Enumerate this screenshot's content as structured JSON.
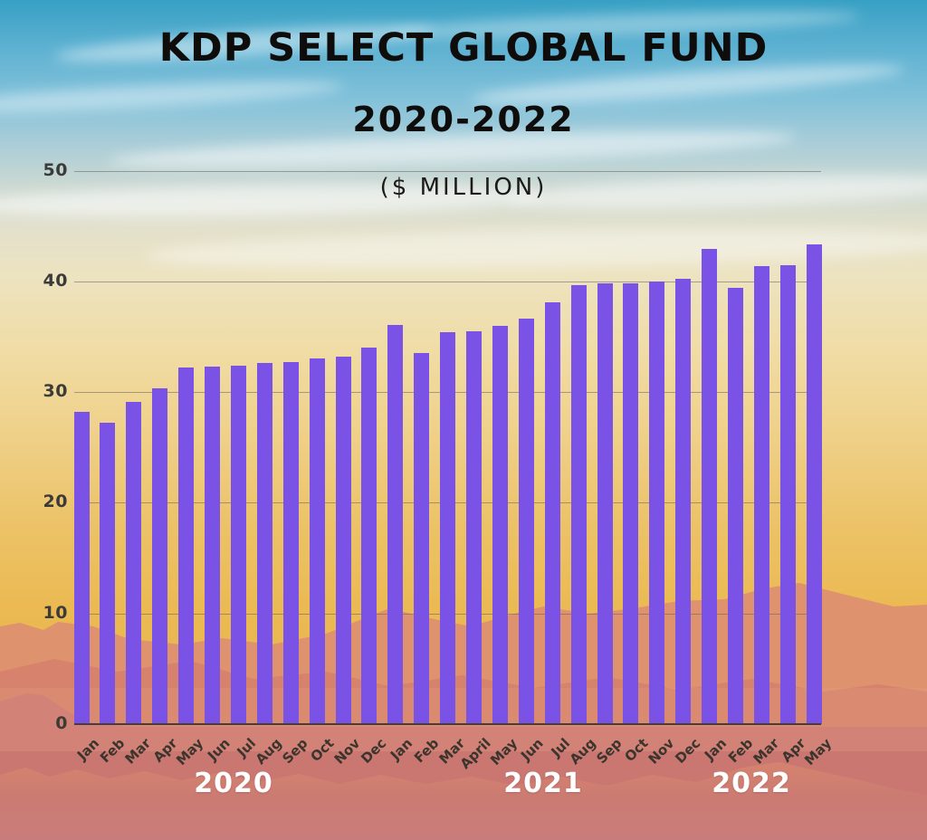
{
  "header": {
    "title": "KDP SELECT GLOBAL FUND",
    "subtitle": "2020-2022",
    "units_label": "($ MILLION)"
  },
  "chart_data": {
    "type": "bar",
    "title": "KDP SELECT GLOBAL FUND 2020-2022",
    "ylabel": "$ million",
    "ylim": [
      0,
      50
    ],
    "yticks": [
      0,
      10,
      20,
      30,
      40,
      50
    ],
    "grid": true,
    "legend": "none",
    "bar_color": "#7b52e6",
    "categories": [
      "Jan",
      "Feb",
      "Mar",
      "Apr",
      "May",
      "Jun",
      "Jul",
      "Aug",
      "Sep",
      "Oct",
      "Nov",
      "Dec",
      "Jan",
      "Feb",
      "Mar",
      "April",
      "May",
      "Jun",
      "Jul",
      "Aug",
      "Sep",
      "Oct",
      "Nov",
      "Dec",
      "Jan",
      "Feb",
      "Mar",
      "Apr",
      "May"
    ],
    "values": [
      28.2,
      27.2,
      29.1,
      30.3,
      32.2,
      32.3,
      32.4,
      32.6,
      32.7,
      33.0,
      33.2,
      34.0,
      36.1,
      33.5,
      35.4,
      35.5,
      36.0,
      36.6,
      38.1,
      39.7,
      39.8,
      39.8,
      40.0,
      40.2,
      42.9,
      39.4,
      41.4,
      41.5,
      43.3
    ],
    "year_groups": [
      {
        "label": "2020",
        "months": 12
      },
      {
        "label": "2021",
        "months": 12
      },
      {
        "label": "2022",
        "months": 5
      }
    ]
  },
  "colors": {
    "bar": "#7b52e6",
    "sky_top": "#37a0c4",
    "sky_gold": "#eab64e",
    "mountain_far": "#dd9070",
    "mountain_mid": "#d5816b",
    "mountain_near": "#c97673",
    "gridline": "#69645a",
    "axis_text": "#3b352d",
    "year_text": "#ffffff",
    "title_text": "#0e0d0c"
  }
}
